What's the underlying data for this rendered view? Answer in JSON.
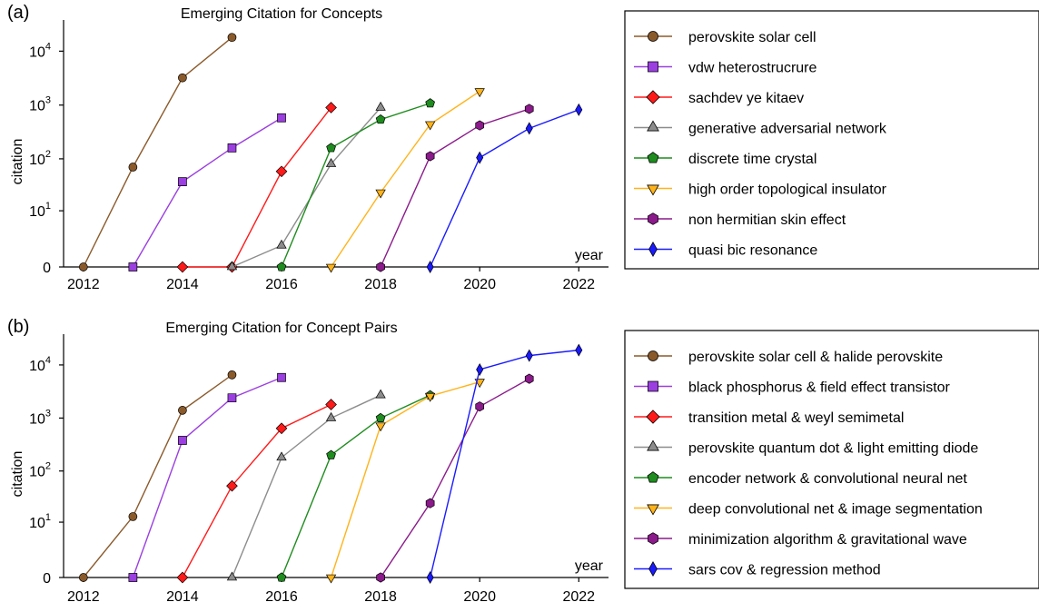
{
  "chart_data": [
    {
      "panel": "(a)",
      "type": "line",
      "title": "Emerging Citation for Concepts",
      "xlabel": "year",
      "ylabel": "citation",
      "x_ticks": [
        2012,
        2014,
        2016,
        2018,
        2020,
        2022
      ],
      "y_ticks": [
        0,
        10,
        100,
        1000,
        10000
      ],
      "y_tick_labels": [
        {
          "base": "0",
          "exp": ""
        },
        {
          "base": "10",
          "exp": "1"
        },
        {
          "base": "10",
          "exp": "2"
        },
        {
          "base": "10",
          "exp": "3"
        },
        {
          "base": "10",
          "exp": "4"
        }
      ],
      "xlim": [
        2011.6,
        2022.6
      ],
      "yscale": "symlog",
      "ylim": [
        0,
        30000
      ],
      "grid": false,
      "legend_position": "outside-right",
      "series": [
        {
          "name": "perovskite solar cell",
          "color": "#8B5A2B",
          "marker": "circle",
          "x": [
            2012,
            2013,
            2014,
            2015
          ],
          "y": [
            0,
            70,
            3200,
            18000
          ]
        },
        {
          "name": "vdw heterostrucrure",
          "color": "#9B3FE0",
          "marker": "square",
          "x": [
            2013,
            2014,
            2015,
            2016
          ],
          "y": [
            0,
            37,
            160,
            580
          ]
        },
        {
          "name": "sachdev ye kitaev",
          "color": "#FF1A1A",
          "marker": "diamond",
          "x": [
            2014,
            2015,
            2016,
            2017
          ],
          "y": [
            0,
            0,
            58,
            900
          ]
        },
        {
          "name": "generative adversarial network",
          "color": "#8C8C8C",
          "marker": "triangle-up",
          "x": [
            2015,
            2016,
            2017,
            2018
          ],
          "y": [
            0,
            1.5,
            80,
            900
          ]
        },
        {
          "name": "discrete time crystal",
          "color": "#1E8C1E",
          "marker": "pentagon",
          "x": [
            2016,
            2017,
            2018,
            2019
          ],
          "y": [
            0,
            160,
            540,
            1080
          ]
        },
        {
          "name": "high order topological insulator",
          "color": "#FFB31A",
          "marker": "triangle-down",
          "x": [
            2017,
            2018,
            2019,
            2020
          ],
          "y": [
            0,
            23,
            440,
            1800
          ]
        },
        {
          "name": "non hermitian skin effect",
          "color": "#8B1A8B",
          "marker": "hexagon",
          "x": [
            2018,
            2019,
            2020,
            2021
          ],
          "y": [
            0,
            112,
            420,
            850
          ]
        },
        {
          "name": "quasi bic resonance",
          "color": "#1A1AFF",
          "marker": "thin-diamond",
          "x": [
            2019,
            2020,
            2021,
            2022
          ],
          "y": [
            0,
            105,
            370,
            820
          ]
        }
      ]
    },
    {
      "panel": "(b)",
      "type": "line",
      "title": "Emerging Citation for Concept Pairs",
      "xlabel": "year",
      "ylabel": "citation",
      "x_ticks": [
        2012,
        2014,
        2016,
        2018,
        2020,
        2022
      ],
      "y_ticks": [
        0,
        10,
        100,
        1000,
        10000
      ],
      "y_tick_labels": [
        {
          "base": "0",
          "exp": ""
        },
        {
          "base": "10",
          "exp": "1"
        },
        {
          "base": "10",
          "exp": "2"
        },
        {
          "base": "10",
          "exp": "3"
        },
        {
          "base": "10",
          "exp": "4"
        }
      ],
      "xlim": [
        2011.6,
        2022.6
      ],
      "yscale": "symlog",
      "ylim": [
        0,
        30000
      ],
      "grid": false,
      "legend_position": "outside-right",
      "series": [
        {
          "name": "perovskite solar cell & halide perovskite",
          "color": "#8B5A2B",
          "marker": "circle",
          "x": [
            2012,
            2013,
            2014,
            2015
          ],
          "y": [
            0,
            13,
            1400,
            6500
          ]
        },
        {
          "name": "black phosphorus & field effect transistor",
          "color": "#9B3FE0",
          "marker": "square",
          "x": [
            2013,
            2014,
            2015,
            2016
          ],
          "y": [
            0,
            380,
            2400,
            5800
          ]
        },
        {
          "name": "transition metal & weyl semimetal",
          "color": "#FF1A1A",
          "marker": "diamond",
          "x": [
            2014,
            2015,
            2016,
            2017
          ],
          "y": [
            0,
            52,
            640,
            1800
          ]
        },
        {
          "name": "perovskite quantum dot & light emitting diode",
          "color": "#8C8C8C",
          "marker": "triangle-up",
          "x": [
            2015,
            2016,
            2017,
            2018
          ],
          "y": [
            0,
            180,
            1000,
            2700
          ]
        },
        {
          "name": "encoder network & convolutional neural net",
          "color": "#1E8C1E",
          "marker": "pentagon",
          "x": [
            2016,
            2017,
            2018,
            2019
          ],
          "y": [
            0,
            200,
            1000,
            2700
          ]
        },
        {
          "name": "deep convolutional net & image segmentation",
          "color": "#FFB31A",
          "marker": "triangle-down",
          "x": [
            2017,
            2018,
            2019,
            2020
          ],
          "y": [
            0,
            720,
            2600,
            4800
          ]
        },
        {
          "name": "minimization algorithm & gravitational wave",
          "color": "#8B1A8B",
          "marker": "hexagon",
          "x": [
            2018,
            2019,
            2020,
            2021
          ],
          "y": [
            0,
            24,
            1650,
            5500
          ]
        },
        {
          "name": "sars cov & regression method",
          "color": "#1A1AFF",
          "marker": "thin-diamond",
          "x": [
            2019,
            2020,
            2021,
            2022
          ],
          "y": [
            0,
            8200,
            15000,
            19000
          ]
        }
      ]
    }
  ]
}
